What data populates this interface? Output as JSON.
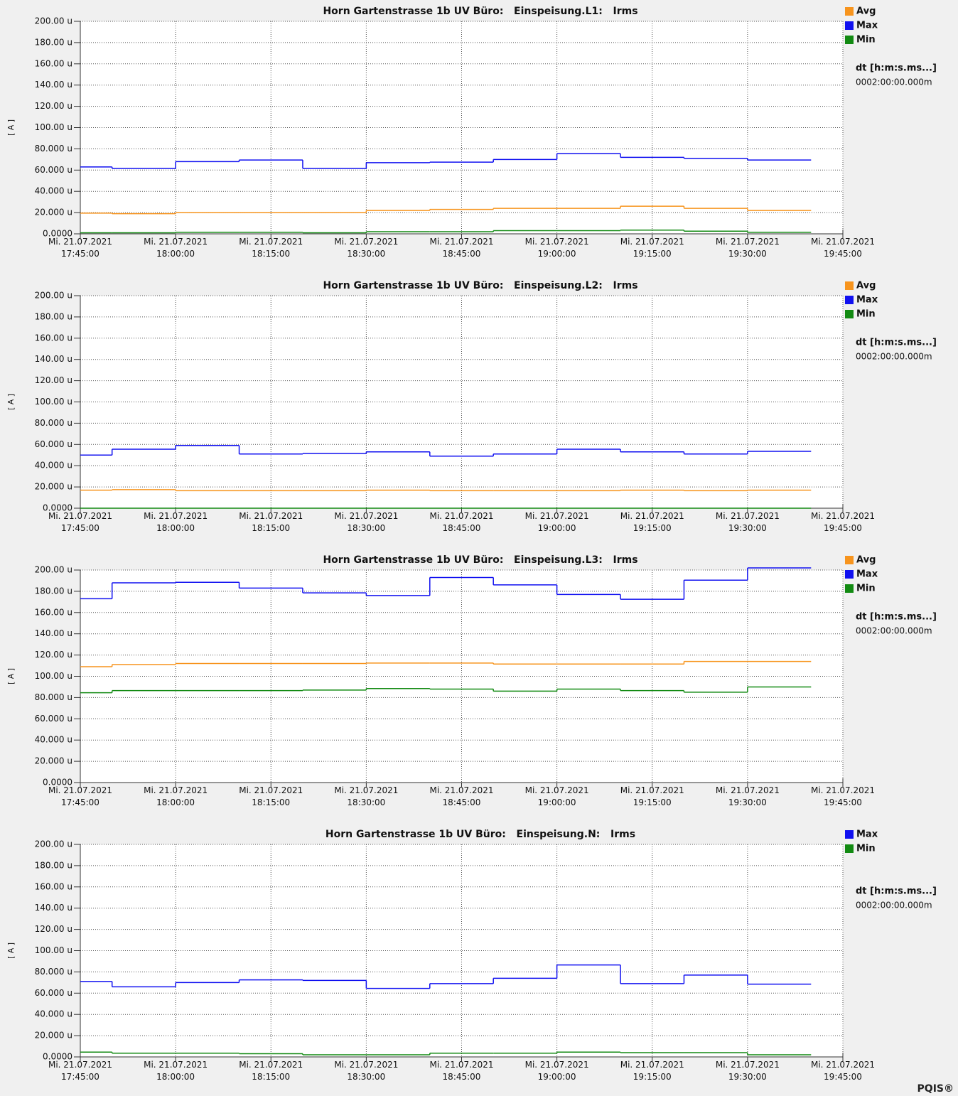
{
  "footer": "PQIS®",
  "chart_data": [
    {
      "type": "line",
      "step": true,
      "title": "Horn Gartenstrasse 1b UV Büro:   Einspeisung.L1:   Irms",
      "ylabel": "[ A ]",
      "annotations": [
        "dt [h:m:s.ms...]",
        "0002:00:00.000m"
      ],
      "grid": true,
      "x": [
        "2021-07-21T17:45:00",
        "2021-07-21T17:50:00",
        "2021-07-21T18:00:00",
        "2021-07-21T18:10:00",
        "2021-07-21T18:20:00",
        "2021-07-21T18:30:00",
        "2021-07-21T18:40:00",
        "2021-07-21T18:50:00",
        "2021-07-21T19:00:00",
        "2021-07-21T19:10:00",
        "2021-07-21T19:20:00",
        "2021-07-21T19:30:00"
      ],
      "xlim": [
        "2021-07-21T17:45:00",
        "2021-07-21T19:45:00"
      ],
      "xticks": [
        {
          "value": "2021-07-21T17:45:00",
          "label": "Mi. 21.07.2021\n17:45:00"
        },
        {
          "value": "2021-07-21T18:00:00",
          "label": "Mi. 21.07.2021\n18:00:00"
        },
        {
          "value": "2021-07-21T18:15:00",
          "label": "Mi. 21.07.2021\n18:15:00"
        },
        {
          "value": "2021-07-21T18:30:00",
          "label": "Mi. 21.07.2021\n18:30:00"
        },
        {
          "value": "2021-07-21T18:45:00",
          "label": "Mi. 21.07.2021\n18:45:00"
        },
        {
          "value": "2021-07-21T19:00:00",
          "label": "Mi. 21.07.2021\n19:00:00"
        },
        {
          "value": "2021-07-21T19:15:00",
          "label": "Mi. 21.07.2021\n19:15:00"
        },
        {
          "value": "2021-07-21T19:30:00",
          "label": "Mi. 21.07.2021\n19:30:00"
        },
        {
          "value": "2021-07-21T19:45:00",
          "label": "Mi. 21.07.2021\n19:45:00"
        }
      ],
      "ylim": [
        0,
        200
      ],
      "yticks": [
        {
          "value": 0,
          "label": "0.0000"
        },
        {
          "value": 20,
          "label": "20.000 u"
        },
        {
          "value": 40,
          "label": "40.000 u"
        },
        {
          "value": 60,
          "label": "60.000 u"
        },
        {
          "value": 80,
          "label": "80.000 u"
        },
        {
          "value": 100,
          "label": "100.00 u"
        },
        {
          "value": 120,
          "label": "120.00 u"
        },
        {
          "value": 140,
          "label": "140.00 u"
        },
        {
          "value": 160,
          "label": "160.00 u"
        },
        {
          "value": 180,
          "label": "180.00 u"
        },
        {
          "value": 200,
          "label": "200.00 u"
        }
      ],
      "series": [
        {
          "name": "Avg",
          "color": "#f7941d",
          "values": [
            19.5,
            19,
            20,
            20,
            20,
            22,
            23,
            24,
            24,
            26,
            24,
            22
          ]
        },
        {
          "name": "Max",
          "color": "#1010f0",
          "values": [
            63,
            61.5,
            68,
            69.5,
            61.5,
            67,
            67.5,
            70,
            75.5,
            72,
            71,
            69.5
          ]
        },
        {
          "name": "Min",
          "color": "#128a12",
          "values": [
            1,
            1,
            1.5,
            1.5,
            1,
            2,
            2,
            3,
            3,
            3.5,
            2.5,
            1.5
          ]
        }
      ]
    },
    {
      "type": "line",
      "step": true,
      "title": "Horn Gartenstrasse 1b UV Büro:   Einspeisung.L2:   Irms",
      "ylabel": "[ A ]",
      "annotations": [
        "dt [h:m:s.ms...]",
        "0002:00:00.000m"
      ],
      "grid": true,
      "x": [
        "2021-07-21T17:45:00",
        "2021-07-21T17:50:00",
        "2021-07-21T18:00:00",
        "2021-07-21T18:10:00",
        "2021-07-21T18:20:00",
        "2021-07-21T18:30:00",
        "2021-07-21T18:40:00",
        "2021-07-21T18:50:00",
        "2021-07-21T19:00:00",
        "2021-07-21T19:10:00",
        "2021-07-21T19:20:00",
        "2021-07-21T19:30:00"
      ],
      "xlim": [
        "2021-07-21T17:45:00",
        "2021-07-21T19:45:00"
      ],
      "xticks": [
        {
          "value": "2021-07-21T17:45:00",
          "label": "Mi. 21.07.2021\n17:45:00"
        },
        {
          "value": "2021-07-21T18:00:00",
          "label": "Mi. 21.07.2021\n18:00:00"
        },
        {
          "value": "2021-07-21T18:15:00",
          "label": "Mi. 21.07.2021\n18:15:00"
        },
        {
          "value": "2021-07-21T18:30:00",
          "label": "Mi. 21.07.2021\n18:30:00"
        },
        {
          "value": "2021-07-21T18:45:00",
          "label": "Mi. 21.07.2021\n18:45:00"
        },
        {
          "value": "2021-07-21T19:00:00",
          "label": "Mi. 21.07.2021\n19:00:00"
        },
        {
          "value": "2021-07-21T19:15:00",
          "label": "Mi. 21.07.2021\n19:15:00"
        },
        {
          "value": "2021-07-21T19:30:00",
          "label": "Mi. 21.07.2021\n19:30:00"
        },
        {
          "value": "2021-07-21T19:45:00",
          "label": "Mi. 21.07.2021\n19:45:00"
        }
      ],
      "ylim": [
        0,
        200
      ],
      "yticks": [
        {
          "value": 0,
          "label": "0.0000"
        },
        {
          "value": 20,
          "label": "20.000 u"
        },
        {
          "value": 40,
          "label": "40.000 u"
        },
        {
          "value": 60,
          "label": "60.000 u"
        },
        {
          "value": 80,
          "label": "80.000 u"
        },
        {
          "value": 100,
          "label": "100.00 u"
        },
        {
          "value": 120,
          "label": "120.00 u"
        },
        {
          "value": 140,
          "label": "140.00 u"
        },
        {
          "value": 160,
          "label": "160.00 u"
        },
        {
          "value": 180,
          "label": "180.00 u"
        },
        {
          "value": 200,
          "label": "200.00 u"
        }
      ],
      "series": [
        {
          "name": "Avg",
          "color": "#f7941d",
          "values": [
            17,
            17.5,
            16.5,
            16.5,
            16.5,
            17,
            16.5,
            16.5,
            16.5,
            17,
            16.5,
            17
          ]
        },
        {
          "name": "Max",
          "color": "#1010f0",
          "values": [
            50,
            55.5,
            59,
            51,
            51.5,
            53,
            49,
            51,
            55.5,
            53,
            51,
            53.5
          ]
        },
        {
          "name": "Min",
          "color": "#128a12",
          "values": [
            0,
            0,
            0,
            0,
            0,
            0,
            0,
            0,
            0,
            0,
            0,
            0
          ]
        }
      ]
    },
    {
      "type": "line",
      "step": true,
      "title": "Horn Gartenstrasse 1b UV Büro:   Einspeisung.L3:   Irms",
      "ylabel": "[ A ]",
      "annotations": [
        "dt [h:m:s.ms...]",
        "0002:00:00.000m"
      ],
      "grid": true,
      "x": [
        "2021-07-21T17:45:00",
        "2021-07-21T17:50:00",
        "2021-07-21T18:00:00",
        "2021-07-21T18:10:00",
        "2021-07-21T18:20:00",
        "2021-07-21T18:30:00",
        "2021-07-21T18:40:00",
        "2021-07-21T18:50:00",
        "2021-07-21T19:00:00",
        "2021-07-21T19:10:00",
        "2021-07-21T19:20:00",
        "2021-07-21T19:30:00"
      ],
      "xlim": [
        "2021-07-21T17:45:00",
        "2021-07-21T19:45:00"
      ],
      "xticks": [
        {
          "value": "2021-07-21T17:45:00",
          "label": "Mi. 21.07.2021\n17:45:00"
        },
        {
          "value": "2021-07-21T18:00:00",
          "label": "Mi. 21.07.2021\n18:00:00"
        },
        {
          "value": "2021-07-21T18:15:00",
          "label": "Mi. 21.07.2021\n18:15:00"
        },
        {
          "value": "2021-07-21T18:30:00",
          "label": "Mi. 21.07.2021\n18:30:00"
        },
        {
          "value": "2021-07-21T18:45:00",
          "label": "Mi. 21.07.2021\n18:45:00"
        },
        {
          "value": "2021-07-21T19:00:00",
          "label": "Mi. 21.07.2021\n19:00:00"
        },
        {
          "value": "2021-07-21T19:15:00",
          "label": "Mi. 21.07.2021\n19:15:00"
        },
        {
          "value": "2021-07-21T19:30:00",
          "label": "Mi. 21.07.2021\n19:30:00"
        },
        {
          "value": "2021-07-21T19:45:00",
          "label": "Mi. 21.07.2021\n19:45:00"
        }
      ],
      "ylim": [
        0,
        200
      ],
      "yticks": [
        {
          "value": 0,
          "label": "0.0000"
        },
        {
          "value": 20,
          "label": "20.000 u"
        },
        {
          "value": 40,
          "label": "40.000 u"
        },
        {
          "value": 60,
          "label": "60.000 u"
        },
        {
          "value": 80,
          "label": "80.000 u"
        },
        {
          "value": 100,
          "label": "100.00 u"
        },
        {
          "value": 120,
          "label": "120.00 u"
        },
        {
          "value": 140,
          "label": "140.00 u"
        },
        {
          "value": 160,
          "label": "160.00 u"
        },
        {
          "value": 180,
          "label": "180.00 u"
        },
        {
          "value": 200,
          "label": "200.00 u"
        }
      ],
      "series": [
        {
          "name": "Avg",
          "color": "#f7941d",
          "values": [
            109,
            111,
            112,
            112,
            112,
            112.5,
            112.5,
            111.5,
            111.5,
            111.5,
            114,
            114
          ]
        },
        {
          "name": "Max",
          "color": "#1010f0",
          "values": [
            173,
            188,
            188.5,
            183,
            178.5,
            176,
            193,
            186,
            177,
            172.5,
            190.5,
            202
          ]
        },
        {
          "name": "Min",
          "color": "#128a12",
          "values": [
            84.5,
            86.5,
            86.5,
            86.5,
            87,
            88.5,
            88,
            86,
            88,
            86.5,
            85,
            90
          ]
        }
      ]
    },
    {
      "type": "line",
      "step": true,
      "title": "Horn Gartenstrasse 1b UV Büro:   Einspeisung.N:   Irms",
      "ylabel": "[ A ]",
      "annotations": [
        "dt [h:m:s.ms...]",
        "0002:00:00.000m"
      ],
      "grid": true,
      "x": [
        "2021-07-21T17:45:00",
        "2021-07-21T17:50:00",
        "2021-07-21T18:00:00",
        "2021-07-21T18:10:00",
        "2021-07-21T18:20:00",
        "2021-07-21T18:30:00",
        "2021-07-21T18:40:00",
        "2021-07-21T18:50:00",
        "2021-07-21T19:00:00",
        "2021-07-21T19:10:00",
        "2021-07-21T19:20:00",
        "2021-07-21T19:30:00"
      ],
      "xlim": [
        "2021-07-21T17:45:00",
        "2021-07-21T19:45:00"
      ],
      "xticks": [
        {
          "value": "2021-07-21T17:45:00",
          "label": "Mi. 21.07.2021\n17:45:00"
        },
        {
          "value": "2021-07-21T18:00:00",
          "label": "Mi. 21.07.2021\n18:00:00"
        },
        {
          "value": "2021-07-21T18:15:00",
          "label": "Mi. 21.07.2021\n18:15:00"
        },
        {
          "value": "2021-07-21T18:30:00",
          "label": "Mi. 21.07.2021\n18:30:00"
        },
        {
          "value": "2021-07-21T18:45:00",
          "label": "Mi. 21.07.2021\n18:45:00"
        },
        {
          "value": "2021-07-21T19:00:00",
          "label": "Mi. 21.07.2021\n19:00:00"
        },
        {
          "value": "2021-07-21T19:15:00",
          "label": "Mi. 21.07.2021\n19:15:00"
        },
        {
          "value": "2021-07-21T19:30:00",
          "label": "Mi. 21.07.2021\n19:30:00"
        },
        {
          "value": "2021-07-21T19:45:00",
          "label": "Mi. 21.07.2021\n19:45:00"
        }
      ],
      "ylim": [
        0,
        200
      ],
      "yticks": [
        {
          "value": 0,
          "label": "0.0000"
        },
        {
          "value": 20,
          "label": "20.000 u"
        },
        {
          "value": 40,
          "label": "40.000 u"
        },
        {
          "value": 60,
          "label": "60.000 u"
        },
        {
          "value": 80,
          "label": "80.000 u"
        },
        {
          "value": 100,
          "label": "100.00 u"
        },
        {
          "value": 120,
          "label": "120.00 u"
        },
        {
          "value": 140,
          "label": "140.00 u"
        },
        {
          "value": 160,
          "label": "160.00 u"
        },
        {
          "value": 180,
          "label": "180.00 u"
        },
        {
          "value": 200,
          "label": "200.00 u"
        }
      ],
      "series": [
        {
          "name": "Max",
          "color": "#1010f0",
          "values": [
            71,
            66,
            70,
            72.5,
            72,
            64.5,
            69,
            74,
            86.5,
            69,
            77,
            68.5
          ]
        },
        {
          "name": "Min",
          "color": "#128a12",
          "values": [
            4.5,
            3.5,
            3.5,
            3,
            2,
            2,
            3.5,
            3.5,
            4.5,
            4,
            4,
            2
          ]
        }
      ]
    }
  ]
}
